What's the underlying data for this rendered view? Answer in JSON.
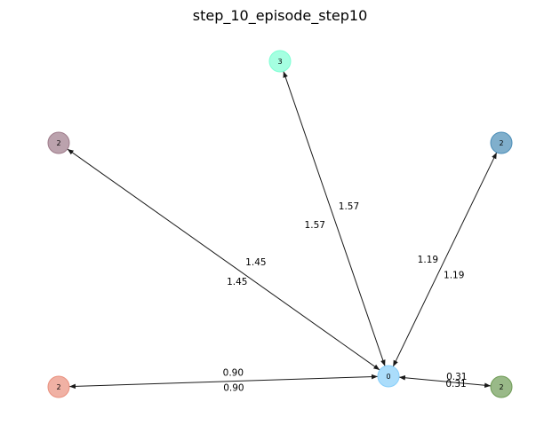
{
  "title": "step_10_episode_step10",
  "nodes": [
    {
      "id": "center",
      "label": "0",
      "color": "#87CEFA"
    },
    {
      "id": "top",
      "label": "3",
      "color": "#7FFFD4"
    },
    {
      "id": "upper-left",
      "label": "2",
      "color": "#9E7B8A"
    },
    {
      "id": "upper-right",
      "label": "2",
      "color": "#4A8DB7"
    },
    {
      "id": "lower-left",
      "label": "2",
      "color": "#E9907E"
    },
    {
      "id": "lower-right",
      "label": "2",
      "color": "#6E9B55"
    }
  ],
  "edges": [
    {
      "from": "center",
      "to": "top",
      "labels": [
        "1.57",
        "1.57"
      ]
    },
    {
      "from": "center",
      "to": "upper-left",
      "labels": [
        "1.45",
        "1.45"
      ]
    },
    {
      "from": "center",
      "to": "upper-right",
      "labels": [
        "1.19",
        "1.19"
      ]
    },
    {
      "from": "center",
      "to": "lower-left",
      "labels": [
        "0.90",
        "0.90"
      ]
    },
    {
      "from": "center",
      "to": "lower-right",
      "labels": [
        "0.31",
        "0.31"
      ]
    }
  ]
}
